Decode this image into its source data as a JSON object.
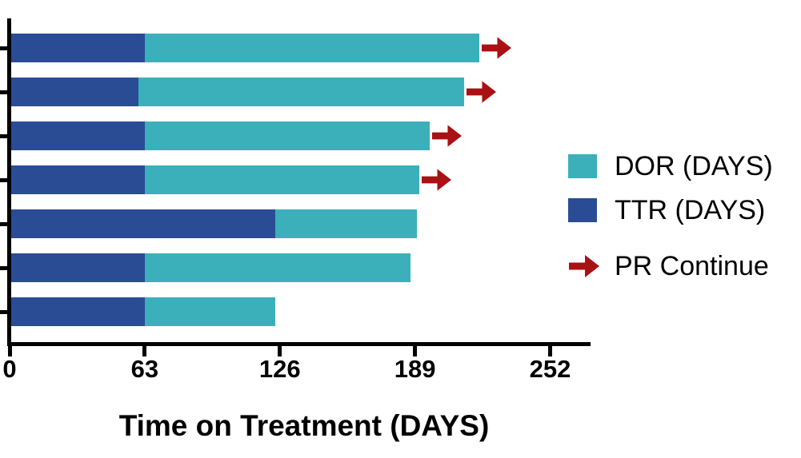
{
  "chart_data": {
    "type": "bar",
    "orientation": "horizontal",
    "stacked": true,
    "title": "",
    "xlabel": "Time on Treatment (DAYS)",
    "ylabel": "",
    "x_ticks": [
      0,
      63,
      126,
      189,
      252
    ],
    "xlim": [
      0,
      270
    ],
    "n_bars": 7,
    "grid": false,
    "y_tick_labels": [
      "",
      "",
      "",
      "",
      "",
      "",
      ""
    ],
    "series": [
      {
        "name": "TTR (DAYS)",
        "color": "#2A4C94",
        "values": [
          63,
          60,
          63,
          63,
          124,
          63,
          63
        ]
      },
      {
        "name": "DOR (DAYS)",
        "color": "#3BB0BA",
        "values": [
          156,
          152,
          133,
          128,
          66,
          124,
          61
        ]
      }
    ],
    "bar_totals": [
      219,
      212,
      196,
      191,
      190,
      187,
      124
    ],
    "pr_continue": [
      true,
      true,
      true,
      true,
      false,
      false,
      false
    ],
    "arrow_color": "#AA1115",
    "axis_color": "#000000",
    "legend": {
      "position": "right",
      "items": [
        {
          "icon": "square",
          "color": "#3BB0BA",
          "label": "DOR (DAYS)"
        },
        {
          "icon": "square",
          "color": "#2A4C94",
          "label": "TTR (DAYS)"
        },
        {
          "icon": "arrow",
          "color": "#AA1115",
          "label": "PR Continue"
        }
      ]
    }
  }
}
